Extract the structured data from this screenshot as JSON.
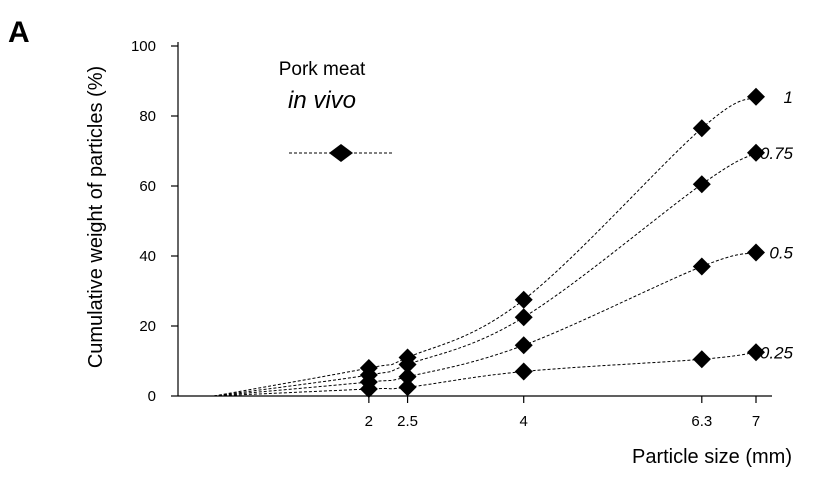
{
  "panel_label": "A",
  "legend": {
    "title": "Pork meat",
    "subtitle": "in vivo",
    "marker_color": "#000000"
  },
  "chart_data": {
    "type": "line",
    "title": "",
    "xlabel": "Particle size (mm)",
    "ylabel": "Cumulative weight of particles (%)",
    "xlim": [
      -0.6,
      7.5
    ],
    "ylim": [
      0,
      100
    ],
    "xticks": [
      2,
      2.5,
      4,
      6.3,
      7
    ],
    "xtick_labels": [
      "2",
      "2.5",
      "4",
      "6.3",
      "7"
    ],
    "yticks": [
      0,
      20,
      40,
      60,
      80,
      100
    ],
    "ytick_labels": [
      "0",
      "20",
      "40",
      "60",
      "80",
      "100"
    ],
    "grid": false,
    "line_style": "dashed",
    "marker": "diamond",
    "color": "#000000",
    "origin_point": [
      0,
      0
    ],
    "x": [
      2,
      2.5,
      4,
      6.3,
      7
    ],
    "series": [
      {
        "name": "1",
        "values": [
          8,
          11,
          27.5,
          76.5,
          85.5
        ]
      },
      {
        "name": "0.75",
        "values": [
          6,
          9,
          22.5,
          60.5,
          69.5
        ]
      },
      {
        "name": "0.5",
        "values": [
          4,
          5.5,
          14.5,
          37,
          41
        ]
      },
      {
        "name": "0.25",
        "values": [
          2,
          2.5,
          7,
          10.5,
          12.5
        ]
      }
    ]
  }
}
